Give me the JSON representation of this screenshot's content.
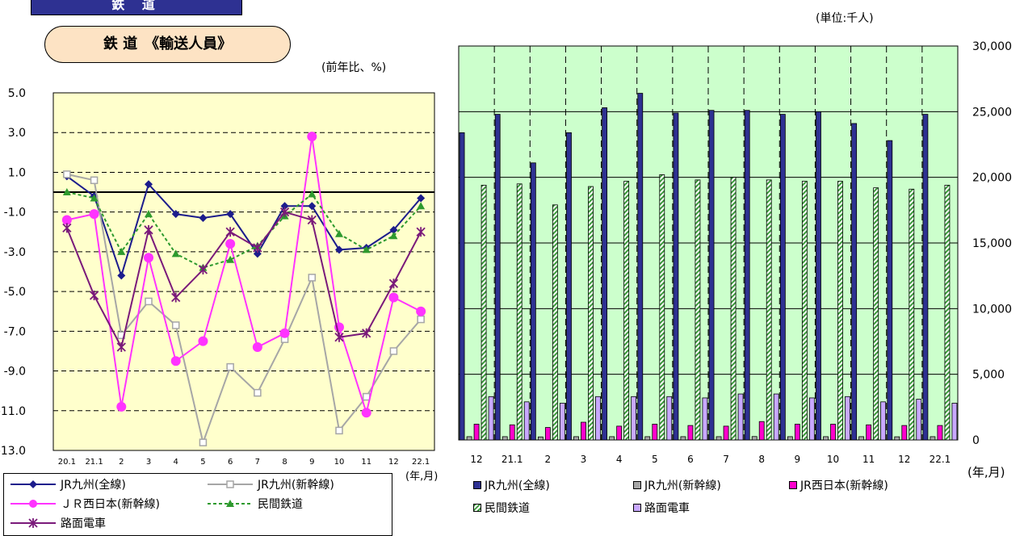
{
  "header": {
    "tab_label": "鉄 道"
  },
  "title": "鉄 道　《輸送人員》",
  "left_chart_unit": "(前年比、%)",
  "right_chart_unit": "(単位:千人)",
  "x_unit_label": "(年,月)",
  "colors": {
    "left_plot_bg": "#ffffcc",
    "right_plot_bg": "#ccffcc",
    "jr_kyushu_all": "#1c1c8c",
    "jr_kyushu_shinkansen": "#a6a6a6",
    "jr_west_shinkansen": "#ff33ff",
    "private_rail": "#2e9a2e",
    "streetcar": "#7a1a7a",
    "streetcar_bar": "#c8a8ff"
  },
  "chart_data": [
    {
      "type": "line",
      "ylabel": "(前年比、%)",
      "xlabel": "(年,月)",
      "ylim": [
        -13,
        5
      ],
      "yticks": [
        "5.0",
        "3.0",
        "1.0",
        "-1.0",
        "-3.0",
        "-5.0",
        "-7.0",
        "-9.0",
        "-11.0",
        "-13.0"
      ],
      "categories": [
        "20.1",
        "21.1",
        "2",
        "3",
        "4",
        "5",
        "6",
        "7",
        "8",
        "9",
        "10",
        "11",
        "12",
        "22.1"
      ],
      "grid": true,
      "legend_position": "bottom",
      "series": [
        {
          "name": "JR九州(全線)",
          "values": [
            0.8,
            -0.2,
            -4.2,
            0.4,
            -1.1,
            -1.3,
            -1.1,
            -3.1,
            -0.7,
            -0.7,
            -2.9,
            -2.8,
            -1.9,
            -0.3
          ]
        },
        {
          "name": "JR九州(新幹線)",
          "values": [
            0.9,
            0.6,
            -7.2,
            -5.5,
            -6.7,
            -12.6,
            -8.8,
            -10.1,
            -7.4,
            -4.3,
            -12.0,
            -10.3,
            -8.0,
            -6.4
          ]
        },
        {
          "name": "ＪＲ西日本(新幹線)",
          "values": [
            -1.4,
            -1.1,
            -10.8,
            -3.3,
            -8.5,
            -7.5,
            -2.6,
            -7.8,
            -7.1,
            2.8,
            -6.8,
            -11.1,
            -5.3,
            -6.0
          ]
        },
        {
          "name": "民間鉄道",
          "values": [
            0.0,
            -0.3,
            -3.0,
            -1.1,
            -3.1,
            -3.8,
            -3.4,
            -2.7,
            -1.2,
            -0.1,
            -2.1,
            -2.9,
            -2.2,
            -0.7
          ]
        },
        {
          "name": "路面電車",
          "values": [
            -1.8,
            -5.2,
            -7.8,
            -1.9,
            -5.3,
            -3.9,
            -2.0,
            -2.8,
            -1.0,
            -1.4,
            -7.3,
            -7.1,
            -4.6,
            -2.0
          ]
        }
      ]
    },
    {
      "type": "bar",
      "ylabel": "(単位:千人)",
      "xlabel": "(年,月)",
      "ylim": [
        0,
        30000
      ],
      "yticks": [
        "30,000",
        "25,000",
        "20,000",
        "15,000",
        "10,000",
        "5,000",
        "0"
      ],
      "categories": [
        "12",
        "21.1",
        "2",
        "3",
        "4",
        "5",
        "6",
        "7",
        "8",
        "9",
        "10",
        "11",
        "12",
        "22.1"
      ],
      "grid": true,
      "legend_position": "bottom",
      "series": [
        {
          "name": "JR九州(全線)",
          "values": [
            23400,
            24800,
            21100,
            23400,
            25300,
            26400,
            24900,
            25100,
            25100,
            24800,
            25000,
            24100,
            22800,
            24800
          ]
        },
        {
          "name": "JR九州(新幹線)",
          "values": [
            250,
            250,
            230,
            250,
            250,
            250,
            250,
            250,
            260,
            250,
            250,
            250,
            240,
            250
          ]
        },
        {
          "name": "JR西日本(新幹線)",
          "values": [
            1200,
            1150,
            950,
            1350,
            1050,
            1200,
            1100,
            1050,
            1400,
            1200,
            1200,
            1150,
            1100,
            1100
          ]
        },
        {
          "name": "民間鉄道",
          "values": [
            19400,
            19500,
            17900,
            19300,
            19700,
            20200,
            19800,
            20000,
            19800,
            19700,
            19700,
            19200,
            19100,
            19400
          ]
        },
        {
          "name": "路面電車",
          "values": [
            3300,
            2900,
            2800,
            3300,
            3300,
            3300,
            3200,
            3500,
            3500,
            3200,
            3300,
            2900,
            3100,
            2800
          ]
        }
      ]
    }
  ]
}
